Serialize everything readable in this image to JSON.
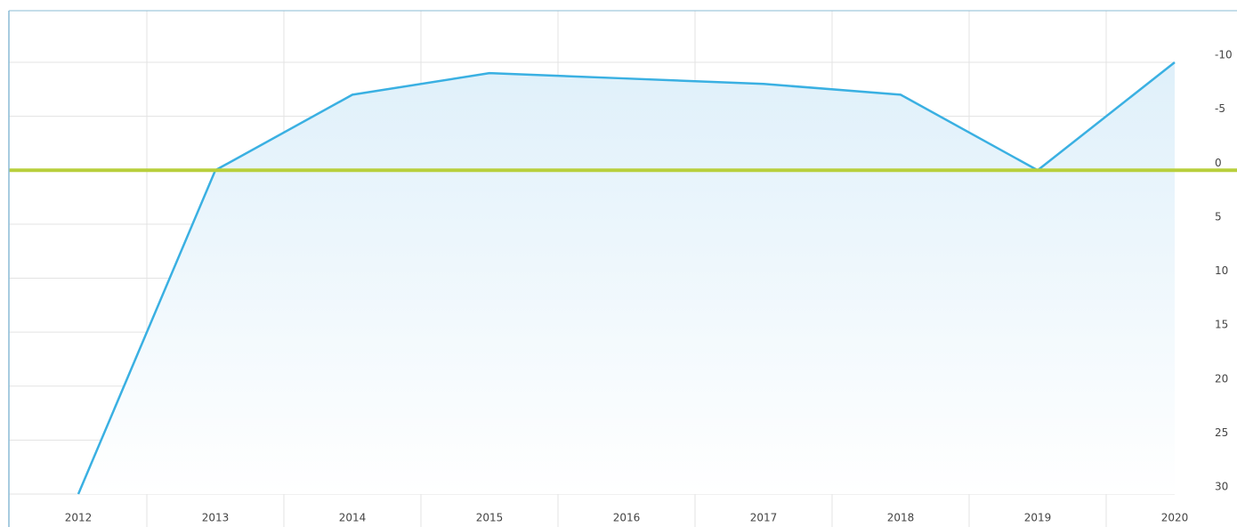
{
  "chart_data": {
    "type": "area",
    "categories": [
      "2012",
      "2013",
      "2014",
      "2015",
      "2016",
      "2017",
      "2018",
      "2019",
      "2020"
    ],
    "series": [
      {
        "color": "#3ab0e2",
        "values": [
          30,
          0,
          -7,
          -9,
          -8.5,
          -8,
          -7,
          0,
          -10
        ]
      }
    ],
    "ylim": [
      -10,
      30
    ],
    "yticks": [
      -10,
      -5,
      0,
      5,
      10,
      15,
      20,
      25,
      30
    ],
    "y_inverted": true,
    "grid": true,
    "reference_line": {
      "value": 0,
      "color": "#b8cf3c"
    }
  }
}
